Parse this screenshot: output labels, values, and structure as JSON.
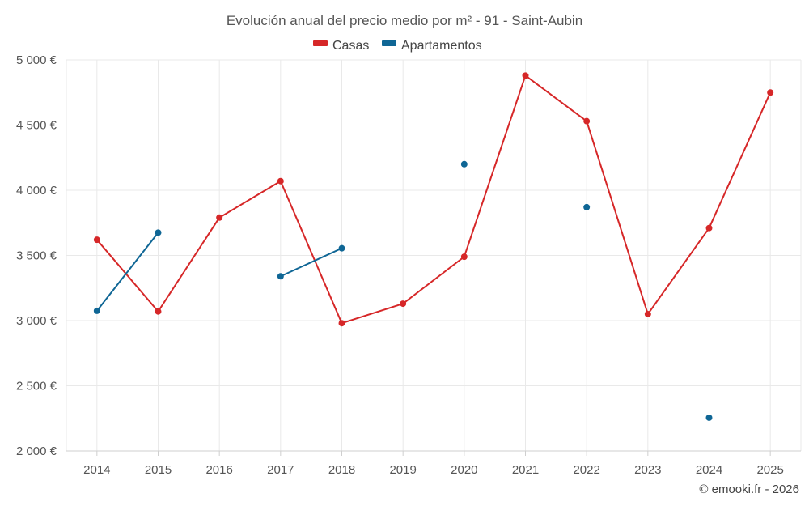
{
  "chart_data": {
    "type": "line",
    "title": "Evolución anual del precio medio por m² - 91 - Saint-Aubin",
    "credit": "© emooki.fr - 2026",
    "categories": [
      "2014",
      "2015",
      "2016",
      "2017",
      "2018",
      "2019",
      "2020",
      "2021",
      "2022",
      "2023",
      "2024",
      "2025"
    ],
    "y_ticks": [
      {
        "value": 2000,
        "label": "2 000 €"
      },
      {
        "value": 2500,
        "label": "2 500 €"
      },
      {
        "value": 3000,
        "label": "3 000 €"
      },
      {
        "value": 3500,
        "label": "3 500 €"
      },
      {
        "value": 4000,
        "label": "4 000 €"
      },
      {
        "value": 4500,
        "label": "4 500 €"
      },
      {
        "value": 5000,
        "label": "5 000 €"
      }
    ],
    "ylim": [
      2000,
      5000
    ],
    "legend_position": "top-center",
    "grid": true,
    "series": [
      {
        "name": "Casas",
        "color": "#d62728",
        "values": [
          3620,
          3070,
          3790,
          4070,
          2980,
          3130,
          3490,
          4880,
          4530,
          3050,
          3710,
          4750
        ]
      },
      {
        "name": "Apartamentos",
        "color": "#0f6695",
        "values": [
          3075,
          3675,
          null,
          3340,
          3555,
          null,
          4200,
          null,
          3870,
          null,
          2255,
          null
        ]
      }
    ]
  }
}
